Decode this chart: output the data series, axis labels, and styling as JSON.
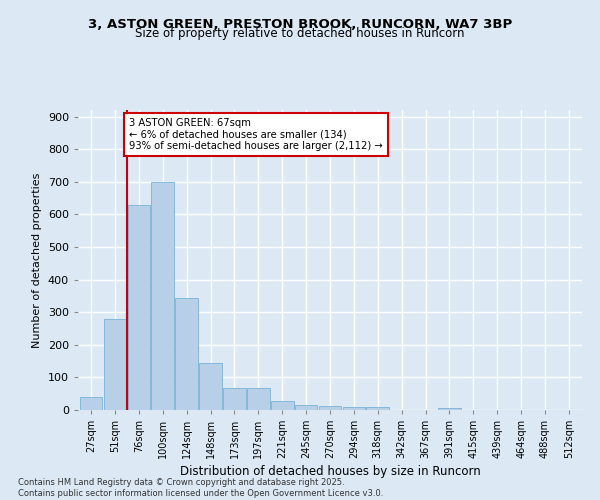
{
  "title_line1": "3, ASTON GREEN, PRESTON BROOK, RUNCORN, WA7 3BP",
  "title_line2": "Size of property relative to detached houses in Runcorn",
  "xlabel": "Distribution of detached houses by size in Runcorn",
  "ylabel": "Number of detached properties",
  "categories": [
    "27sqm",
    "51sqm",
    "76sqm",
    "100sqm",
    "124sqm",
    "148sqm",
    "173sqm",
    "197sqm",
    "221sqm",
    "245sqm",
    "270sqm",
    "294sqm",
    "318sqm",
    "342sqm",
    "367sqm",
    "391sqm",
    "415sqm",
    "439sqm",
    "464sqm",
    "488sqm",
    "512sqm"
  ],
  "values": [
    40,
    280,
    630,
    700,
    345,
    145,
    67,
    67,
    28,
    14,
    12,
    10,
    8,
    0,
    0,
    5,
    0,
    0,
    0,
    0,
    0
  ],
  "bar_color": "#b8cfe8",
  "bar_edge_color": "#6aaad4",
  "background_color": "#dce9f5",
  "plot_bg_color": "#dce9f5",
  "grid_color": "#ffffff",
  "red_line_x": 1.5,
  "annotation_title": "3 ASTON GREEN: 67sqm",
  "annotation_line1": "← 6% of detached houses are smaller (134)",
  "annotation_line2": "93% of semi-detached houses are larger (2,112) →",
  "annotation_box_color": "#ffffff",
  "annotation_border_color": "#cc0000",
  "red_line_color": "#cc0000",
  "footer_line1": "Contains HM Land Registry data © Crown copyright and database right 2025.",
  "footer_line2": "Contains public sector information licensed under the Open Government Licence v3.0.",
  "ylim": [
    0,
    920
  ],
  "yticks": [
    0,
    100,
    200,
    300,
    400,
    500,
    600,
    700,
    800,
    900
  ]
}
